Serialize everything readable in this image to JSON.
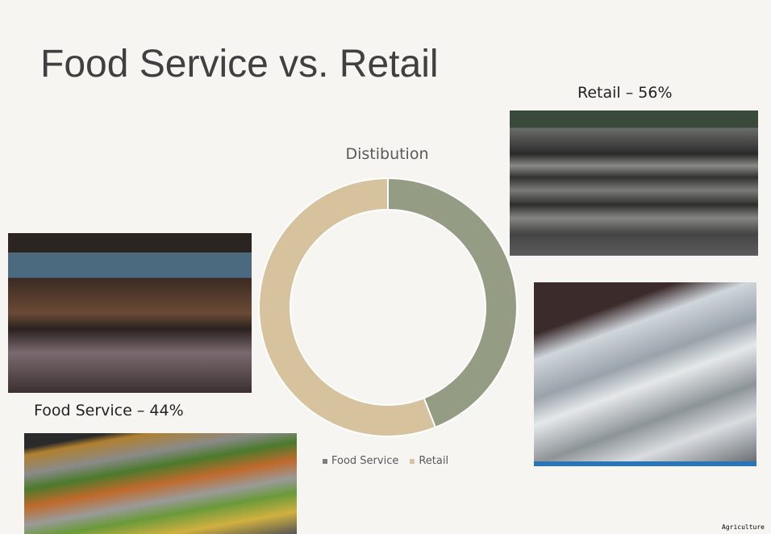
{
  "title": "Food Service vs. Retail",
  "labels": {
    "retail": "Retail – 56%",
    "food_service": "Food Service – 44%"
  },
  "footer": "Agriculture",
  "chart_data": {
    "type": "pie",
    "donut": true,
    "title": "Distibution",
    "categories": [
      "Food Service",
      "Retail"
    ],
    "values": [
      44,
      56
    ],
    "colors": [
      "#949d84",
      "#d6c39d"
    ],
    "legend_colors": [
      "#7f7f7f",
      "#d6c39d"
    ],
    "legend": "bottom"
  }
}
